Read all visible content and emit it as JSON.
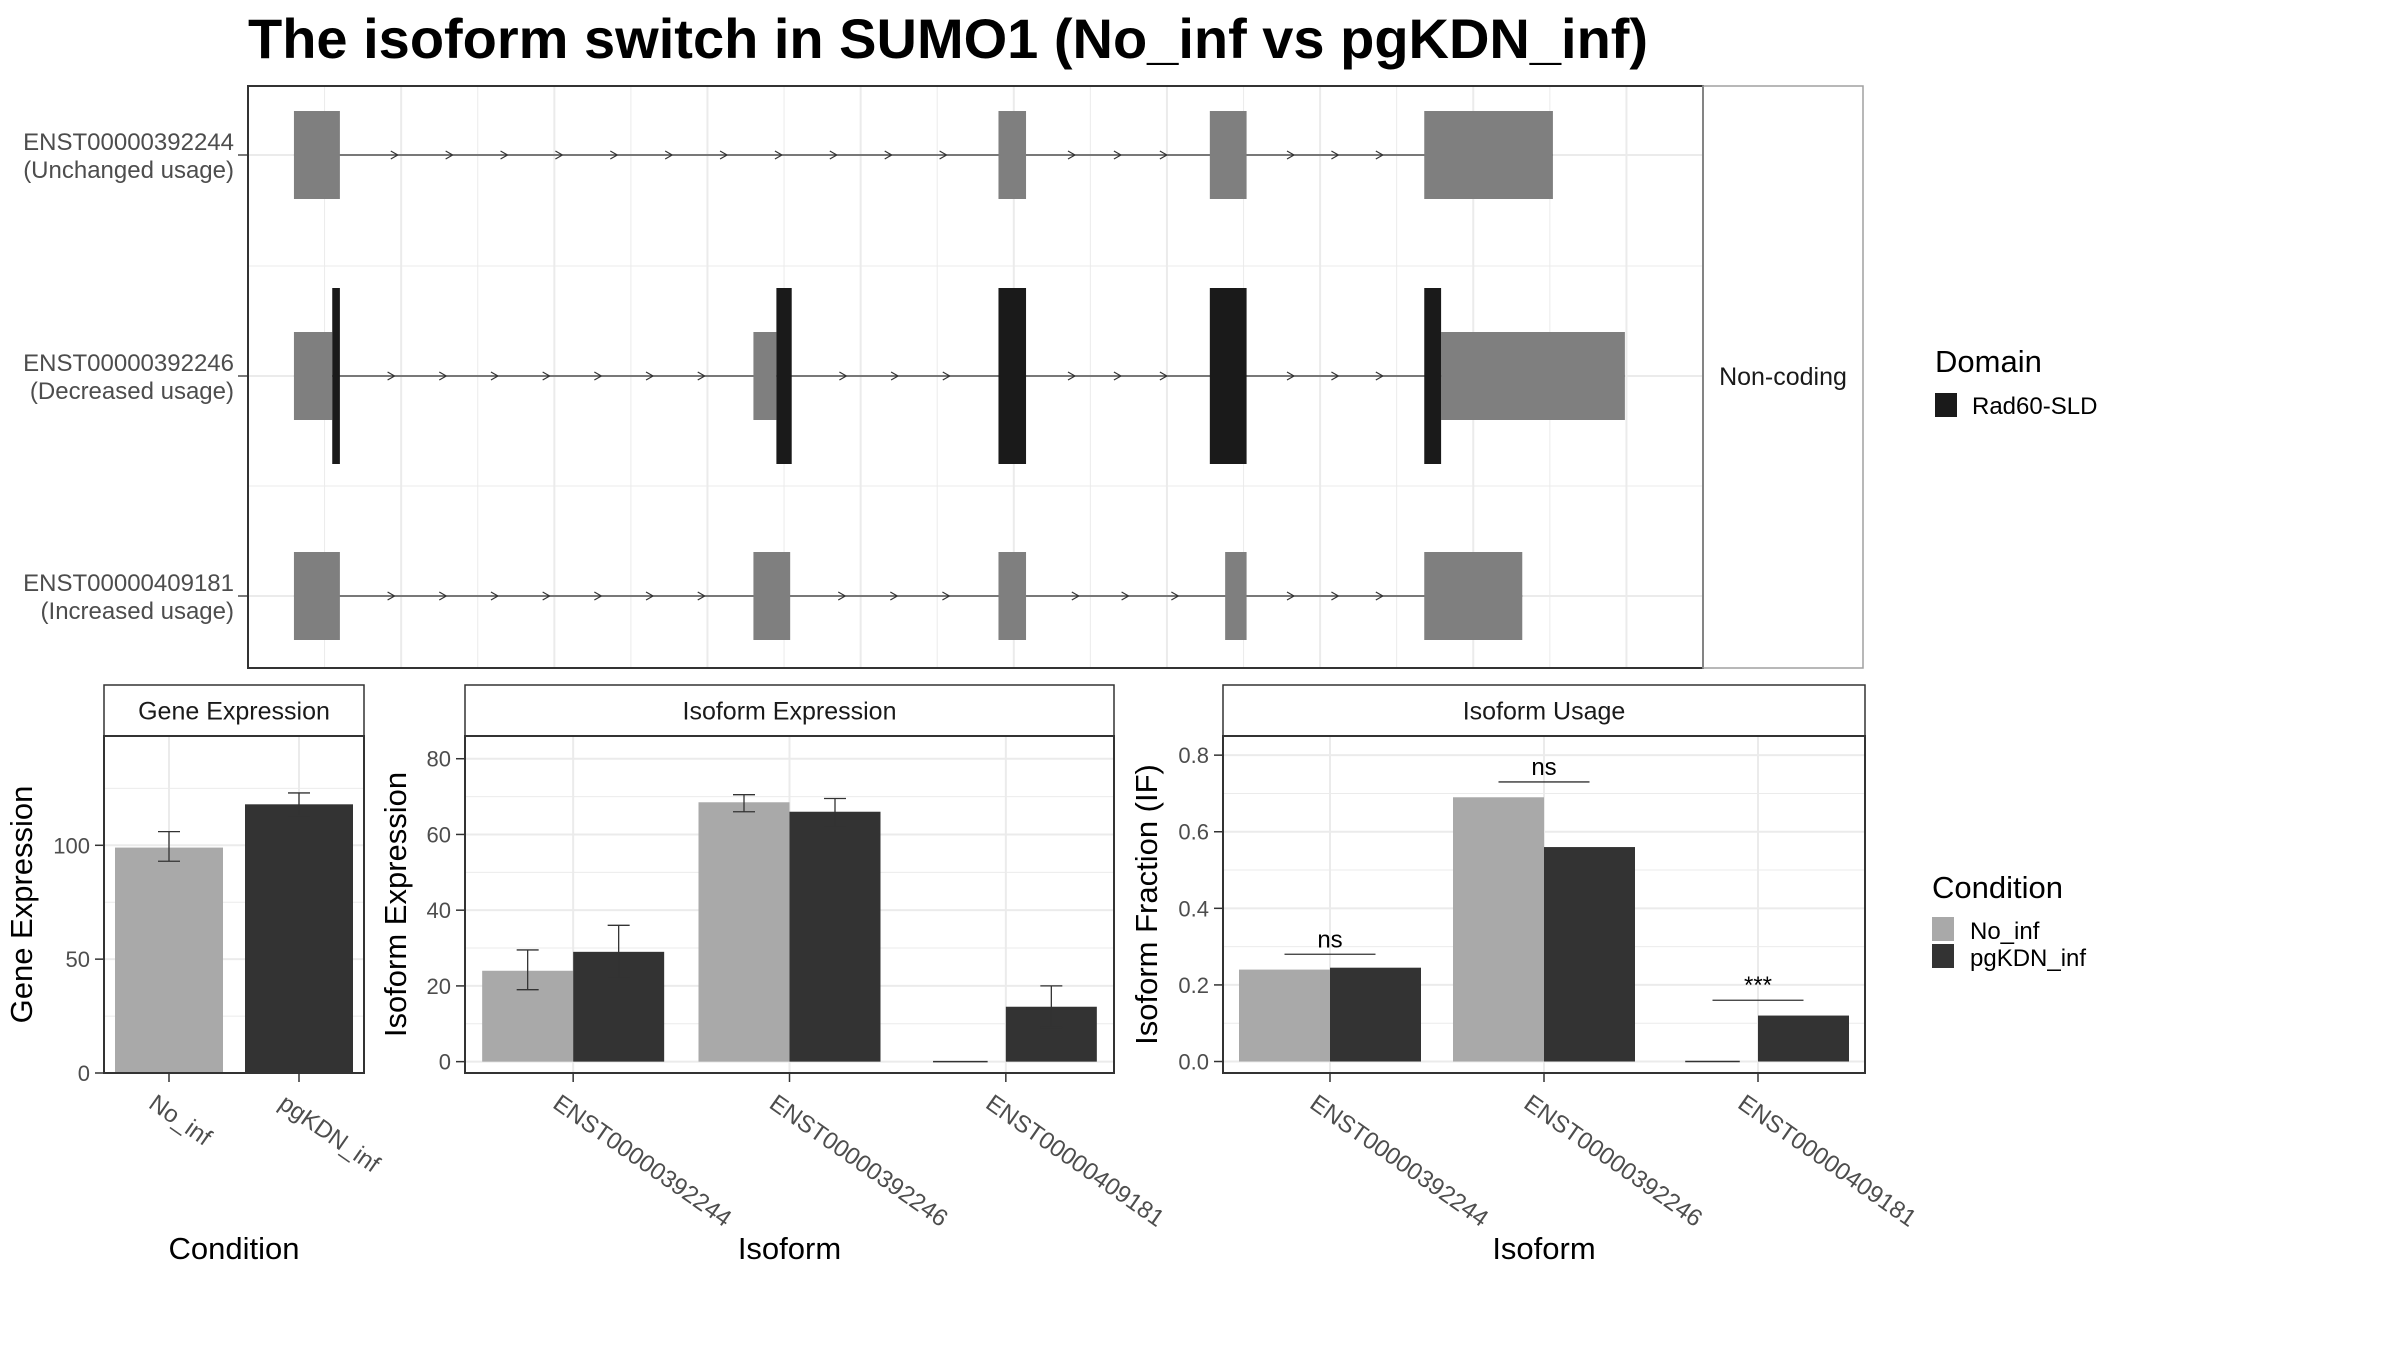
{
  "title": "The isoform switch in SUMO1 (No_inf vs pgKDN_inf)",
  "colors": {
    "no_inf": "#a9a9a9",
    "pgkdn_inf": "#333333",
    "utr_exon": "#7f7f7f",
    "domain": "#1a1a1a",
    "grid": "#ebebeb",
    "panel_border": "#333333",
    "strip_border": "#a0a0a0"
  },
  "chart_data": [
    {
      "type": "gene-structure",
      "title": "The isoform switch in SUMO1 (No_inf vs pgKDN_inf)",
      "transcripts": [
        {
          "id": "ENST00000392244",
          "usage": "(Unchanged usage)",
          "coding": false,
          "exons_utr": [
            [
              3.0,
              6.0
            ],
            [
              49.0,
              50.8
            ],
            [
              62.8,
              65.2
            ],
            [
              76.8,
              85.2
            ]
          ],
          "exons_cds": []
        },
        {
          "id": "ENST00000392246",
          "usage": "(Decreased usage)",
          "coding": true,
          "exons_utr": [
            [
              3.0,
              5.5
            ],
            [
              33.0,
              34.5
            ],
            [
              77.9,
              89.9
            ]
          ],
          "exons_cds": [
            [
              5.5,
              6.0
            ],
            [
              34.5,
              35.5
            ],
            [
              49.0,
              50.8
            ],
            [
              62.8,
              65.2
            ],
            [
              76.8,
              77.9
            ]
          ]
        },
        {
          "id": "ENST00000409181",
          "usage": "(Increased usage)",
          "coding": false,
          "exons_utr": [
            [
              3.0,
              6.0
            ],
            [
              33.0,
              35.4
            ],
            [
              49.0,
              50.8
            ],
            [
              63.8,
              65.2
            ],
            [
              76.8,
              83.2
            ]
          ],
          "exons_cds": []
        }
      ],
      "facet_label": "Non-coding",
      "legend": {
        "title": "Domain",
        "entries": [
          "Rad60-SLD"
        ]
      }
    },
    {
      "type": "bar",
      "title": "Gene Expression",
      "xlabel": "Condition",
      "ylabel": "Gene Expression",
      "categories": [
        "No_inf",
        "pgKDN_inf"
      ],
      "values": [
        99,
        118
      ],
      "errors": [
        [
          93,
          106
        ],
        [
          113,
          123
        ]
      ],
      "ylim": [
        0,
        148
      ],
      "yticks": [
        0,
        50,
        100
      ]
    },
    {
      "type": "bar",
      "title": "Isoform Expression",
      "xlabel": "Isoform",
      "ylabel": "Isoform Expression",
      "categories": [
        "ENST00000392244",
        "ENST00000392246",
        "ENST00000409181"
      ],
      "series": [
        {
          "name": "No_inf",
          "values": [
            24,
            68.5,
            0
          ],
          "errors": [
            [
              19,
              29.5
            ],
            [
              66,
              70.5
            ],
            [
              0,
              0
            ]
          ]
        },
        {
          "name": "pgKDN_inf",
          "values": [
            29,
            66,
            14.5
          ],
          "errors": [
            [
              22,
              36
            ],
            [
              62,
              69.5
            ],
            [
              9,
              20
            ]
          ]
        }
      ],
      "ylim": [
        -3,
        86
      ],
      "yticks": [
        0,
        20,
        40,
        60,
        80
      ]
    },
    {
      "type": "bar",
      "title": "Isoform Usage",
      "xlabel": "Isoform",
      "ylabel": "Isoform Fraction (IF)",
      "categories": [
        "ENST00000392244",
        "ENST00000392246",
        "ENST00000409181"
      ],
      "series": [
        {
          "name": "No_inf",
          "values": [
            0.24,
            0.69,
            0
          ]
        },
        {
          "name": "pgKDN_inf",
          "values": [
            0.245,
            0.56,
            0.12
          ]
        }
      ],
      "significance": [
        "ns",
        "ns",
        "***"
      ],
      "significance_y": [
        0.28,
        0.73,
        0.16
      ],
      "ylim": [
        -0.03,
        0.85
      ],
      "yticks": [
        0.0,
        0.2,
        0.4,
        0.6,
        0.8
      ],
      "legend": {
        "title": "Condition",
        "entries": [
          "No_inf",
          "pgKDN_inf"
        ]
      }
    }
  ]
}
